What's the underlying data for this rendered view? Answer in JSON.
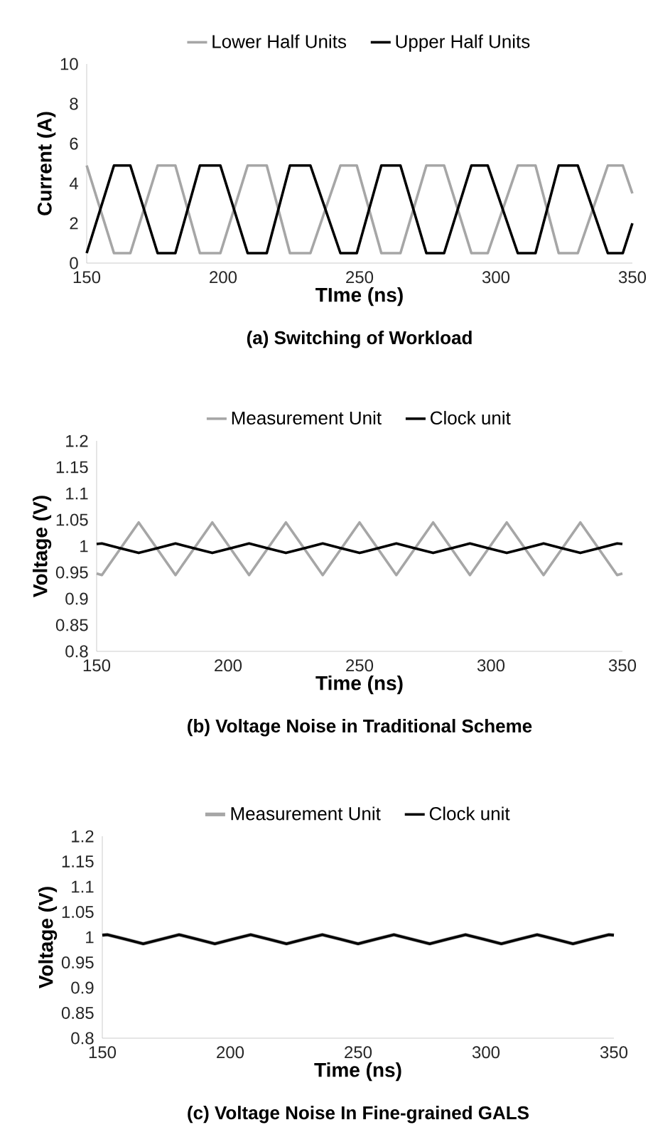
{
  "chart_data": [
    {
      "type": "line",
      "title": "(a) Switching of Workload",
      "xlabel": "TIme (ns)",
      "ylabel": "Current (A)",
      "xlim": [
        150,
        350
      ],
      "ylim": [
        0,
        10
      ],
      "xticks": [
        150,
        200,
        250,
        300,
        350
      ],
      "yticks": [
        0,
        2,
        4,
        6,
        8,
        10
      ],
      "legend": "top",
      "series": [
        {
          "name": "Lower Half Units",
          "color": "#a6a6a6",
          "x": [
            150,
            160,
            166,
            176,
            182.5,
            191.5,
            199,
            209,
            216,
            224.5,
            232,
            243,
            249,
            258,
            265,
            274.5,
            281,
            291,
            297,
            308,
            314.5,
            323,
            330,
            341,
            346.5,
            350
          ],
          "values": [
            4.9,
            0.5,
            0.5,
            4.9,
            4.9,
            0.5,
            0.5,
            4.9,
            4.9,
            0.5,
            0.5,
            4.9,
            4.9,
            0.5,
            0.5,
            4.9,
            4.9,
            0.5,
            0.5,
            4.9,
            4.9,
            0.5,
            0.5,
            4.9,
            4.9,
            3.5
          ]
        },
        {
          "name": "Upper Half Units",
          "color": "#000000",
          "x": [
            150,
            160,
            166,
            176,
            182.5,
            191.5,
            199,
            209,
            216,
            224.5,
            232,
            243,
            249,
            258,
            265,
            274.5,
            281,
            291,
            297,
            308,
            314.5,
            323,
            330,
            341,
            346.5,
            350
          ],
          "values": [
            0.5,
            4.9,
            4.9,
            0.5,
            0.5,
            4.9,
            4.9,
            0.5,
            0.5,
            4.9,
            4.9,
            0.5,
            0.5,
            4.9,
            4.9,
            0.5,
            0.5,
            4.9,
            4.9,
            0.5,
            0.5,
            4.9,
            4.9,
            0.5,
            0.5,
            2.0
          ]
        }
      ]
    },
    {
      "type": "line",
      "title": "(b) Voltage Noise in Traditional Scheme",
      "xlabel": "Time (ns)",
      "ylabel": "Voltage (V)",
      "xlim": [
        150,
        350
      ],
      "ylim": [
        0.8,
        1.2
      ],
      "xticks": [
        150,
        200,
        250,
        300,
        350
      ],
      "yticks": [
        0.8,
        0.85,
        0.9,
        0.95,
        1,
        1.05,
        1.1,
        1.15,
        1.2
      ],
      "legend": "top",
      "series": [
        {
          "name": "Measurement Unit",
          "color": "#a6a6a6",
          "x": [
            150,
            152,
            159,
            166,
            173,
            180,
            187,
            194,
            201,
            208,
            215,
            222,
            229,
            236,
            243,
            250,
            257,
            264,
            271,
            278,
            285,
            292,
            299,
            306,
            313,
            320,
            327,
            334,
            341,
            348,
            350
          ],
          "values": [
            0.948,
            0.945,
            0.995,
            1.045,
            0.995,
            0.945,
            0.995,
            1.045,
            0.995,
            0.945,
            0.995,
            1.045,
            0.995,
            0.945,
            0.995,
            1.045,
            0.995,
            0.945,
            0.995,
            1.045,
            0.995,
            0.945,
            0.995,
            1.045,
            0.995,
            0.945,
            0.995,
            1.045,
            0.995,
            0.945,
            0.948
          ]
        },
        {
          "name": "Clock unit",
          "color": "#000000",
          "x": [
            150,
            152,
            159,
            166,
            173,
            180,
            187,
            194,
            201,
            208,
            215,
            222,
            229,
            236,
            243,
            250,
            257,
            264,
            271,
            278,
            285,
            292,
            299,
            306,
            313,
            320,
            327,
            334,
            341,
            348,
            350
          ],
          "values": [
            1.004,
            1.005,
            0.996,
            0.987,
            0.996,
            1.005,
            0.996,
            0.987,
            0.996,
            1.005,
            0.996,
            0.987,
            0.996,
            1.005,
            0.996,
            0.987,
            0.996,
            1.005,
            0.996,
            0.987,
            0.996,
            1.005,
            0.996,
            0.987,
            0.996,
            1.005,
            0.996,
            0.987,
            0.996,
            1.005,
            1.004
          ]
        }
      ]
    },
    {
      "type": "line",
      "title": "(c) Voltage Noise In Fine-grained GALS",
      "xlabel": "Time (ns)",
      "ylabel": "Voltage (V)",
      "xlim": [
        150,
        350
      ],
      "ylim": [
        0.8,
        1.2
      ],
      "xticks": [
        150,
        200,
        250,
        300,
        350
      ],
      "yticks": [
        0.8,
        0.85,
        0.9,
        0.95,
        1,
        1.05,
        1.1,
        1.15,
        1.2
      ],
      "legend": "top",
      "series": [
        {
          "name": "Measurement Unit",
          "color": "#a6a6a6",
          "x": [
            150,
            152,
            159,
            166,
            173,
            180,
            187,
            194,
            201,
            208,
            215,
            222,
            229,
            236,
            243,
            250,
            257,
            264,
            271,
            278,
            285,
            292,
            299,
            306,
            313,
            320,
            327,
            334,
            341,
            348,
            350
          ],
          "values": [
            1.004,
            1.005,
            0.996,
            0.987,
            0.996,
            1.005,
            0.996,
            0.987,
            0.996,
            1.005,
            0.996,
            0.987,
            0.996,
            1.005,
            0.996,
            0.987,
            0.996,
            1.005,
            0.996,
            0.987,
            0.996,
            1.005,
            0.996,
            0.987,
            0.996,
            1.005,
            0.996,
            0.987,
            0.996,
            1.005,
            1.004
          ]
        },
        {
          "name": "Clock unit",
          "color": "#000000",
          "x": [
            150,
            152,
            159,
            166,
            173,
            180,
            187,
            194,
            201,
            208,
            215,
            222,
            229,
            236,
            243,
            250,
            257,
            264,
            271,
            278,
            285,
            292,
            299,
            306,
            313,
            320,
            327,
            334,
            341,
            348,
            350
          ],
          "values": [
            1.004,
            1.005,
            0.996,
            0.987,
            0.996,
            1.005,
            0.996,
            0.987,
            0.996,
            1.005,
            0.996,
            0.987,
            0.996,
            1.005,
            0.996,
            0.987,
            0.996,
            1.005,
            0.996,
            0.987,
            0.996,
            1.005,
            0.996,
            0.987,
            0.996,
            1.005,
            0.996,
            0.987,
            0.996,
            1.005,
            1.004
          ]
        }
      ]
    }
  ]
}
